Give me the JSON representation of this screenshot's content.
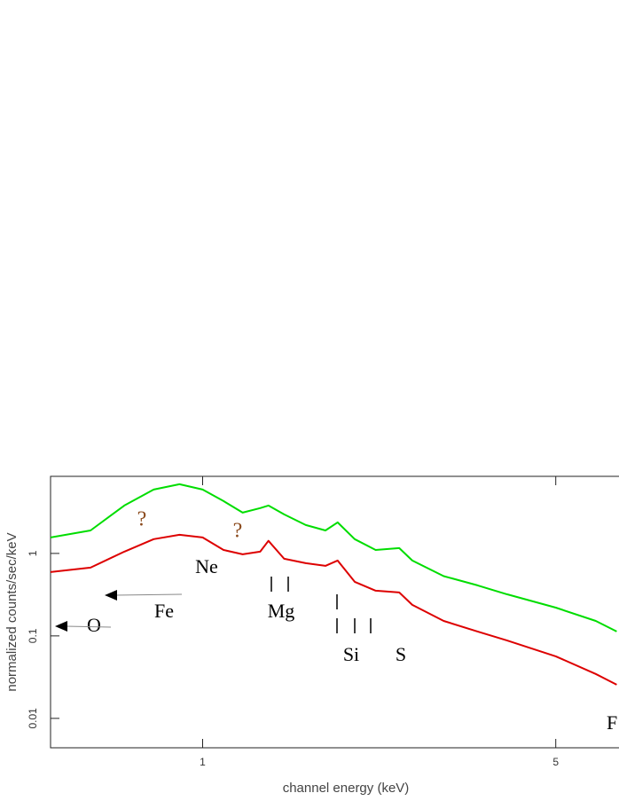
{
  "chart_data": {
    "type": "line",
    "xlabel": "channel energy (keV)",
    "ylabel": "normalized counts/sec/keV",
    "xscale": "log",
    "yscale": "log",
    "xlim": [
      0.5,
      6.67
    ],
    "ylim": [
      0.0044,
      8.6
    ],
    "xticks": [
      1,
      5
    ],
    "yticks": [
      0.01,
      0.1,
      1
    ],
    "x": [
      0.5,
      0.6,
      0.7,
      0.8,
      0.9,
      1.0,
      1.1,
      1.2,
      1.3,
      1.35,
      1.45,
      1.6,
      1.75,
      1.85,
      2.0,
      2.2,
      2.45,
      2.6,
      3.0,
      3.5,
      4.0,
      5.0,
      6.0,
      6.6
    ],
    "series": [
      {
        "color": "#00dd00",
        "values": [
          1.56,
          1.9,
          3.81,
          5.95,
          6.9,
          5.95,
          4.31,
          3.12,
          3.54,
          3.81,
          2.97,
          2.21,
          1.9,
          2.38,
          1.49,
          1.1,
          1.16,
          0.82,
          0.53,
          0.41,
          0.32,
          0.22,
          0.152,
          0.113
        ]
      },
      {
        "color": "#dd0000",
        "values": [
          0.594,
          0.673,
          1.05,
          1.49,
          1.68,
          1.56,
          1.1,
          0.976,
          1.05,
          1.42,
          0.862,
          0.762,
          0.707,
          0.82,
          0.453,
          0.353,
          0.336,
          0.238,
          0.152,
          0.113,
          0.0883,
          0.0566,
          0.0345,
          0.0256
        ]
      }
    ],
    "annotations": [
      "?",
      "?",
      "Ne",
      "Mg",
      "Si",
      "S",
      "Fe",
      "O",
      "F"
    ]
  }
}
